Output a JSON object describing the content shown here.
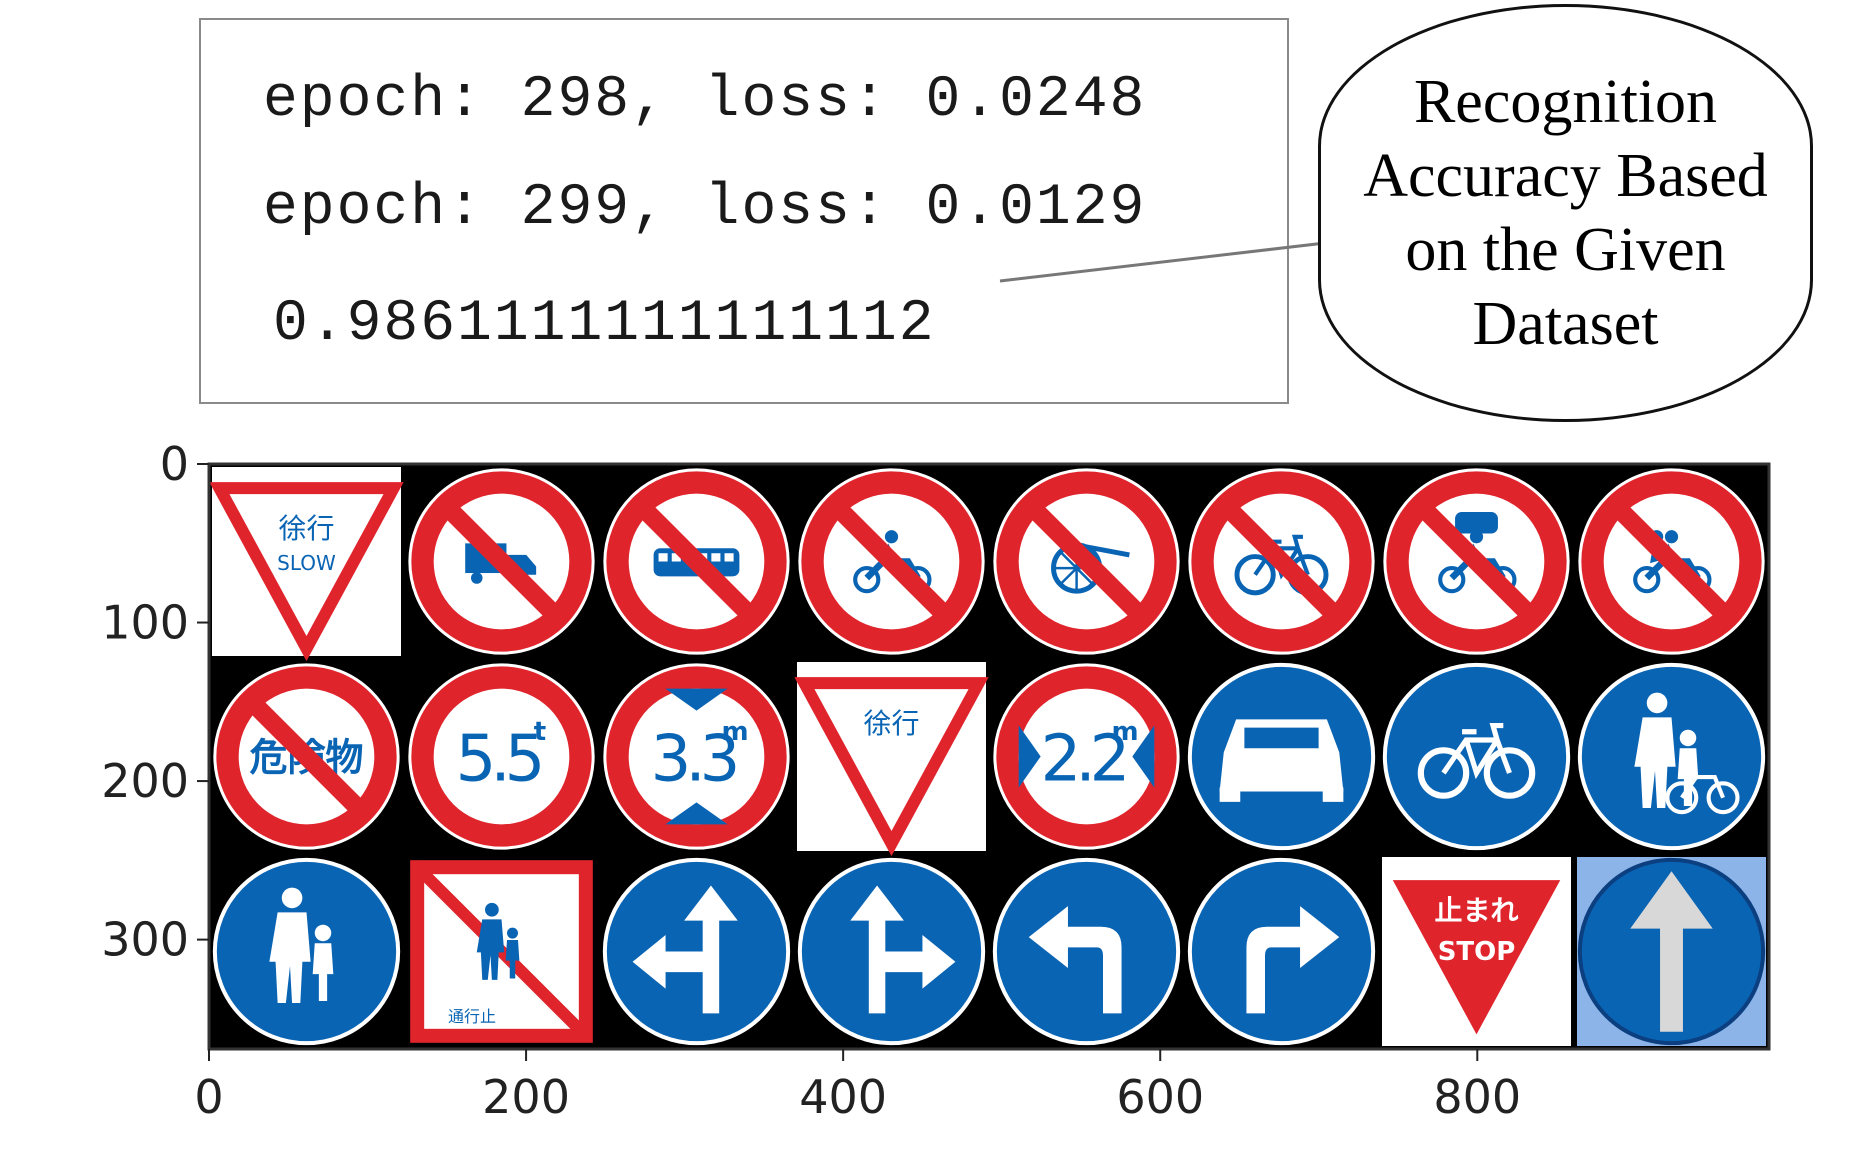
{
  "log": {
    "line1": "epoch: 298, loss: 0.0248",
    "line2": "epoch: 299, loss: 0.0129",
    "accuracy": "0.9861111111111112"
  },
  "callout": {
    "text": "Recognition Accuracy Based on the Given Dataset"
  },
  "colors": {
    "prohibit_red": "#e0242c",
    "sign_blue": "#0a64b4",
    "black_bg": "#000000",
    "white": "#ffffff"
  },
  "chart_data": {
    "type": "image-grid",
    "xlim": [
      0,
      984
    ],
    "ylim": [
      369,
      0
    ],
    "x_ticks": [
      "0",
      "200",
      "400",
      "600",
      "800"
    ],
    "y_ticks": [
      "0",
      "100",
      "200",
      "300"
    ],
    "grid": {
      "rows": 3,
      "cols": 8
    },
    "sign_labels": {
      "slow": "徐行",
      "slow_en": "SLOW",
      "hazardous": "危険物",
      "weight": "5.5",
      "weight_unit": "t",
      "height": "3.3",
      "height_unit": "m",
      "width": "2.2",
      "width_unit": "m",
      "stop": "止まれ",
      "stop_en": "STOP",
      "no_pedestrian": "通行止"
    },
    "signs": [
      {
        "row": 0,
        "col": 0,
        "kind": "yield-slow",
        "icon": "slow-yield-icon"
      },
      {
        "row": 0,
        "col": 1,
        "kind": "prohibit",
        "icon": "truck-icon"
      },
      {
        "row": 0,
        "col": 2,
        "kind": "prohibit",
        "icon": "bus-icon"
      },
      {
        "row": 0,
        "col": 3,
        "kind": "prohibit",
        "icon": "motorcycle-icon"
      },
      {
        "row": 0,
        "col": 4,
        "kind": "prohibit",
        "icon": "rickshaw-icon"
      },
      {
        "row": 0,
        "col": 5,
        "kind": "prohibit",
        "icon": "bicycle-icon"
      },
      {
        "row": 0,
        "col": 6,
        "kind": "prohibit",
        "icon": "car-motorcycle-icon"
      },
      {
        "row": 0,
        "col": 7,
        "kind": "prohibit",
        "icon": "tandem-motorcycle-icon"
      },
      {
        "row": 1,
        "col": 0,
        "kind": "prohibit-text",
        "icon": "hazardous-materials-icon"
      },
      {
        "row": 1,
        "col": 1,
        "kind": "limit",
        "icon": "weight-limit-icon"
      },
      {
        "row": 1,
        "col": 2,
        "kind": "limit",
        "icon": "height-limit-icon"
      },
      {
        "row": 1,
        "col": 3,
        "kind": "yield",
        "icon": "slow-yield-icon"
      },
      {
        "row": 1,
        "col": 4,
        "kind": "limit",
        "icon": "width-limit-icon"
      },
      {
        "row": 1,
        "col": 5,
        "kind": "mandatory",
        "icon": "car-icon"
      },
      {
        "row": 1,
        "col": 6,
        "kind": "mandatory",
        "icon": "bicycle-icon"
      },
      {
        "row": 1,
        "col": 7,
        "kind": "mandatory",
        "icon": "pedestrian-bicycle-icon"
      },
      {
        "row": 2,
        "col": 0,
        "kind": "mandatory",
        "icon": "pedestrian-child-icon"
      },
      {
        "row": 2,
        "col": 1,
        "kind": "square-prohibit",
        "icon": "no-pedestrian-icon"
      },
      {
        "row": 2,
        "col": 2,
        "kind": "mandatory",
        "icon": "straight-left-arrow-icon"
      },
      {
        "row": 2,
        "col": 3,
        "kind": "mandatory",
        "icon": "straight-right-arrow-icon"
      },
      {
        "row": 2,
        "col": 4,
        "kind": "mandatory",
        "icon": "left-turn-arrow-icon"
      },
      {
        "row": 2,
        "col": 5,
        "kind": "mandatory",
        "icon": "right-turn-arrow-icon"
      },
      {
        "row": 2,
        "col": 6,
        "kind": "stop",
        "icon": "stop-icon"
      },
      {
        "row": 2,
        "col": 7,
        "kind": "one-way",
        "icon": "straight-arrow-icon"
      }
    ]
  }
}
